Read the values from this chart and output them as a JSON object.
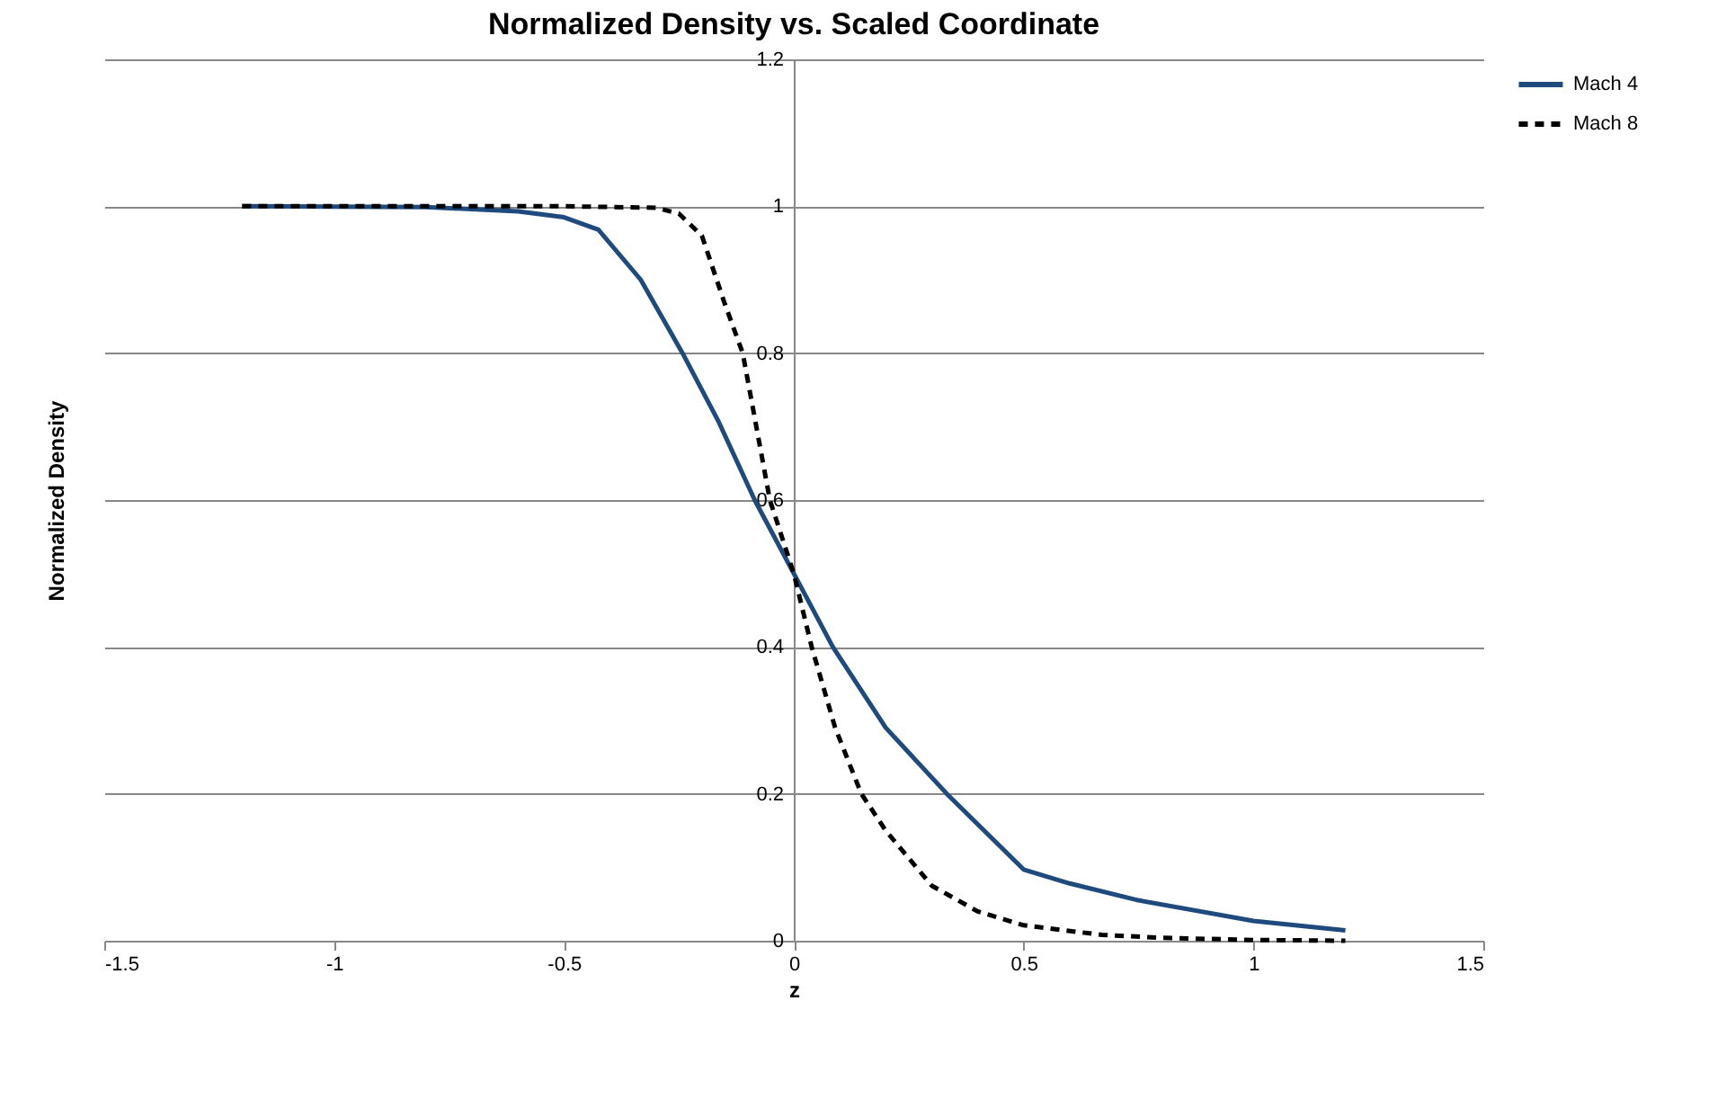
{
  "chart_data": {
    "type": "line",
    "title": "Normalized Density vs. Scaled Coordinate",
    "xlabel": "z",
    "ylabel": "Normalized Density",
    "xlim": [
      -1.5,
      1.5
    ],
    "xticks": [
      -1.5,
      -1,
      -0.5,
      0,
      0.5,
      1,
      1.5
    ],
    "ylim": [
      0,
      1.2
    ],
    "yticks": [
      0,
      0.2,
      0.4,
      0.6,
      0.8,
      1,
      1.2
    ],
    "grid": "y",
    "legend": "right",
    "marker": "none",
    "series": [
      {
        "name": "Mach 4",
        "color": "#1f4a7e",
        "line_style": "solid",
        "x": [
          -1.2,
          -0.8,
          -0.6,
          -0.5,
          -0.425,
          -0.333,
          -0.242,
          -0.163,
          -0.085,
          0,
          0.085,
          0.2,
          0.333,
          0.5,
          0.6,
          0.75,
          1,
          1.2
        ],
        "values": [
          1.0,
          0.999,
          0.993,
          0.985,
          0.968,
          0.9,
          0.8,
          0.706,
          0.6,
          0.5,
          0.4,
          0.29,
          0.2,
          0.097,
          0.078,
          0.055,
          0.027,
          0.014
        ]
      },
      {
        "name": "Mach 8",
        "color": "#000000",
        "line_style": "dashed",
        "x": [
          -1.2,
          -0.5,
          -0.3,
          -0.25,
          -0.2,
          -0.15,
          -0.111,
          -0.052,
          0,
          0.039,
          0.09,
          0.147,
          0.2,
          0.3,
          0.4,
          0.5,
          0.67,
          0.8,
          1,
          1.2
        ],
        "values": [
          1,
          1,
          0.998,
          0.99,
          0.96,
          0.867,
          0.8,
          0.6,
          0.5,
          0.4,
          0.29,
          0.2,
          0.15,
          0.075,
          0.04,
          0.021,
          0.008,
          0.004,
          0.001,
          0
        ]
      }
    ]
  }
}
